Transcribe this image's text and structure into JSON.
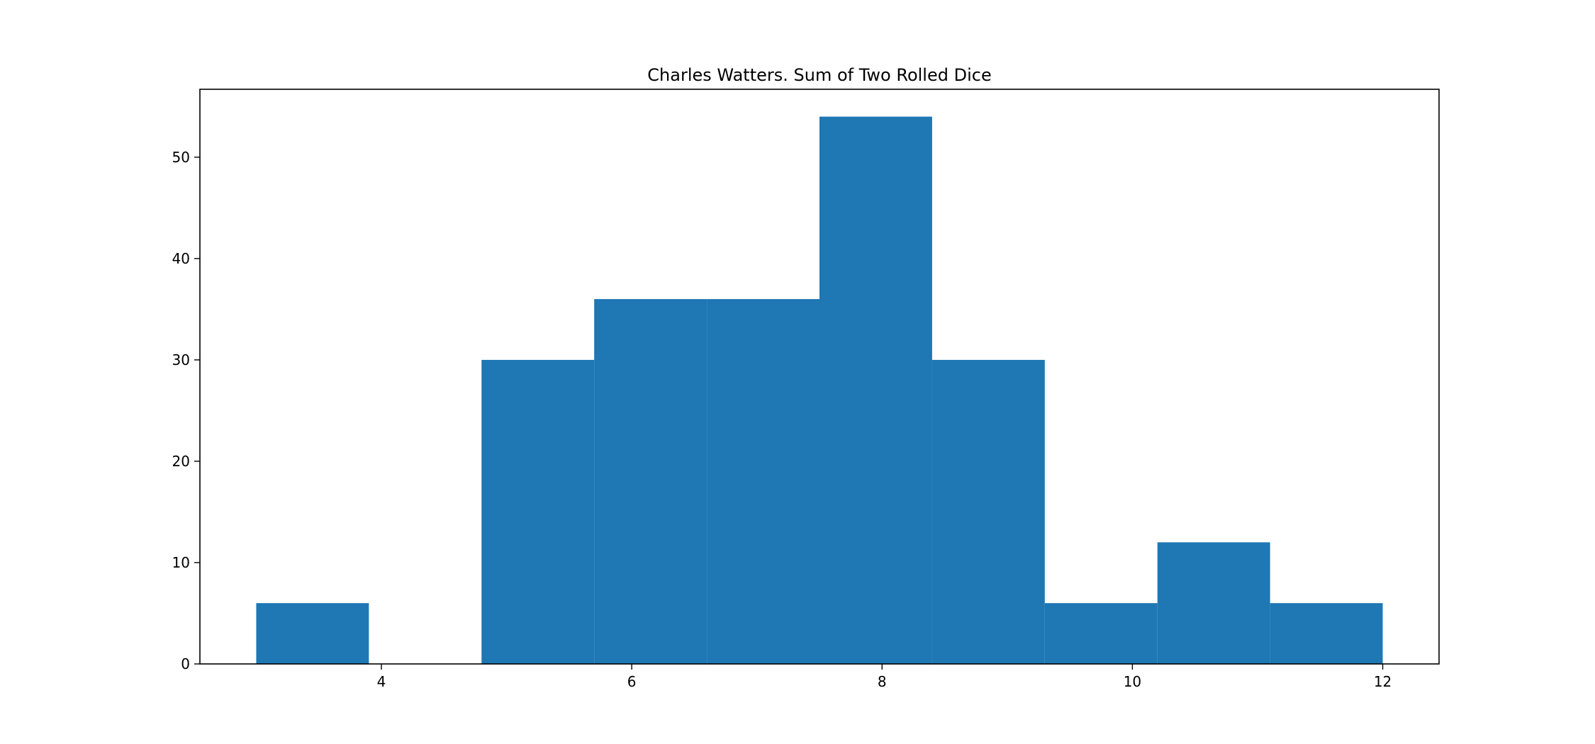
{
  "chart_data": {
    "type": "bar",
    "title": "Charles Watters. Sum of Two Rolled Dice",
    "xlabel": "",
    "ylabel": "",
    "xlim": [
      2.55,
      12.45
    ],
    "ylim": [
      0,
      56.7
    ],
    "xticks": [
      4,
      6,
      8,
      10,
      12
    ],
    "yticks": [
      0,
      10,
      20,
      30,
      40,
      50
    ],
    "grid": false,
    "color": "#1f77b4",
    "bins": [
      {
        "start": 3.0,
        "end": 3.9,
        "value": 6
      },
      {
        "start": 3.9,
        "end": 4.8,
        "value": 0
      },
      {
        "start": 4.8,
        "end": 5.7,
        "value": 30
      },
      {
        "start": 5.7,
        "end": 6.6,
        "value": 36
      },
      {
        "start": 6.6,
        "end": 7.5,
        "value": 36
      },
      {
        "start": 7.5,
        "end": 8.4,
        "value": 54
      },
      {
        "start": 8.4,
        "end": 9.3,
        "value": 30
      },
      {
        "start": 9.3,
        "end": 10.2,
        "value": 6
      },
      {
        "start": 10.2,
        "end": 11.1,
        "value": 12
      },
      {
        "start": 11.1,
        "end": 12.0,
        "value": 6
      }
    ]
  }
}
